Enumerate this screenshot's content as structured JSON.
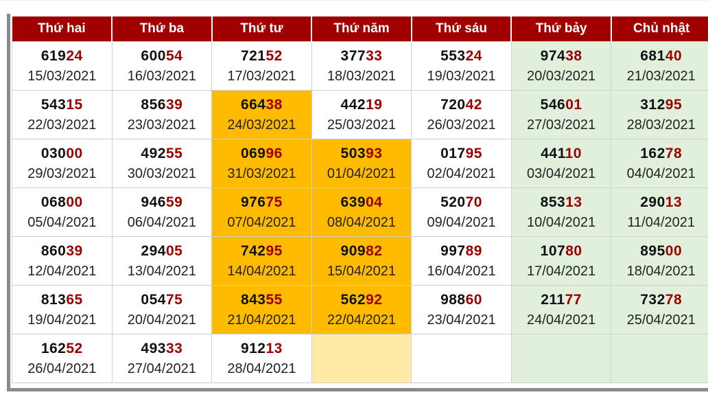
{
  "header": [
    "Thứ hai",
    "Thứ ba",
    "Thứ tư",
    "Thứ năm",
    "Thứ sáu",
    "Thứ bảy",
    "Chủ nhật"
  ],
  "colors": {
    "header_bg": "#a00000",
    "highlight": "#ffbb00",
    "highlight_empty": "#ffeaa6",
    "weekend": "#e0f0dc",
    "tail_digits": "#9b0000"
  },
  "rows": [
    [
      {
        "head": "619",
        "tail": "24",
        "date": "15/03/2021"
      },
      {
        "head": "600",
        "tail": "54",
        "date": "16/03/2021"
      },
      {
        "head": "721",
        "tail": "52",
        "date": "17/03/2021"
      },
      {
        "head": "377",
        "tail": "33",
        "date": "18/03/2021"
      },
      {
        "head": "553",
        "tail": "24",
        "date": "19/03/2021"
      },
      {
        "head": "974",
        "tail": "38",
        "date": "20/03/2021"
      },
      {
        "head": "681",
        "tail": "40",
        "date": "21/03/2021"
      }
    ],
    [
      {
        "head": "543",
        "tail": "15",
        "date": "22/03/2021"
      },
      {
        "head": "856",
        "tail": "39",
        "date": "23/03/2021"
      },
      {
        "head": "664",
        "tail": "38",
        "date": "24/03/2021"
      },
      {
        "head": "442",
        "tail": "19",
        "date": "25/03/2021"
      },
      {
        "head": "720",
        "tail": "42",
        "date": "26/03/2021"
      },
      {
        "head": "546",
        "tail": "01",
        "date": "27/03/2021"
      },
      {
        "head": "312",
        "tail": "95",
        "date": "28/03/2021"
      }
    ],
    [
      {
        "head": "030",
        "tail": "00",
        "date": "29/03/2021"
      },
      {
        "head": "492",
        "tail": "55",
        "date": "30/03/2021"
      },
      {
        "head": "069",
        "tail": "96",
        "date": "31/03/2021"
      },
      {
        "head": "503",
        "tail": "93",
        "date": "01/04/2021"
      },
      {
        "head": "017",
        "tail": "95",
        "date": "02/04/2021"
      },
      {
        "head": "441",
        "tail": "10",
        "date": "03/04/2021"
      },
      {
        "head": "162",
        "tail": "78",
        "date": "04/04/2021"
      }
    ],
    [
      {
        "head": "068",
        "tail": "00",
        "date": "05/04/2021"
      },
      {
        "head": "946",
        "tail": "59",
        "date": "06/04/2021"
      },
      {
        "head": "976",
        "tail": "75",
        "date": "07/04/2021"
      },
      {
        "head": "639",
        "tail": "04",
        "date": "08/04/2021"
      },
      {
        "head": "520",
        "tail": "70",
        "date": "09/04/2021"
      },
      {
        "head": "853",
        "tail": "13",
        "date": "10/04/2021"
      },
      {
        "head": "290",
        "tail": "13",
        "date": "11/04/2021"
      }
    ],
    [
      {
        "head": "860",
        "tail": "39",
        "date": "12/04/2021"
      },
      {
        "head": "294",
        "tail": "05",
        "date": "13/04/2021"
      },
      {
        "head": "742",
        "tail": "95",
        "date": "14/04/2021"
      },
      {
        "head": "909",
        "tail": "82",
        "date": "15/04/2021"
      },
      {
        "head": "997",
        "tail": "89",
        "date": "16/04/2021"
      },
      {
        "head": "107",
        "tail": "80",
        "date": "17/04/2021"
      },
      {
        "head": "895",
        "tail": "00",
        "date": "18/04/2021"
      }
    ],
    [
      {
        "head": "813",
        "tail": "65",
        "date": "19/04/2021"
      },
      {
        "head": "054",
        "tail": "75",
        "date": "20/04/2021"
      },
      {
        "head": "843",
        "tail": "55",
        "date": "21/04/2021"
      },
      {
        "head": "562",
        "tail": "92",
        "date": "22/04/2021"
      },
      {
        "head": "988",
        "tail": "60",
        "date": "23/04/2021"
      },
      {
        "head": "211",
        "tail": "77",
        "date": "24/04/2021"
      },
      {
        "head": "732",
        "tail": "78",
        "date": "25/04/2021"
      }
    ],
    [
      {
        "head": "162",
        "tail": "52",
        "date": "26/04/2021"
      },
      {
        "head": "493",
        "tail": "33",
        "date": "27/04/2021"
      },
      {
        "head": "912",
        "tail": "13",
        "date": "28/04/2021"
      },
      {
        "head": "",
        "tail": "",
        "date": ""
      },
      {
        "head": "",
        "tail": "",
        "date": ""
      },
      {
        "head": "",
        "tail": "",
        "date": ""
      },
      {
        "head": "",
        "tail": "",
        "date": ""
      }
    ]
  ]
}
